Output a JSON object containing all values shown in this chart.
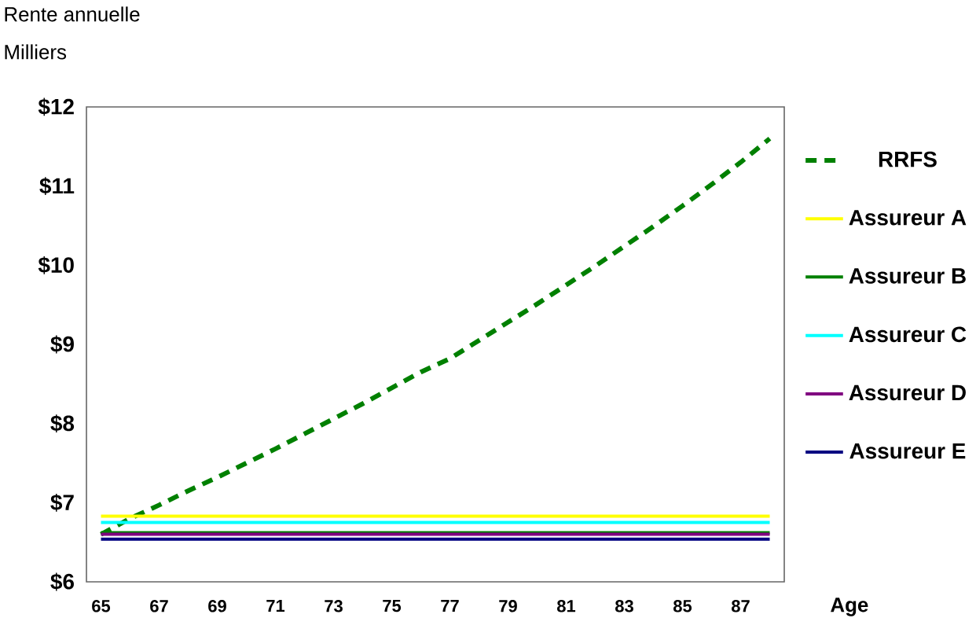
{
  "chart_data": {
    "type": "line",
    "ylabel": "Rente annuelle",
    "xlabel": "Age",
    "annotations": [
      "Milliers"
    ],
    "x": [
      65,
      66,
      67,
      68,
      69,
      70,
      71,
      72,
      73,
      74,
      75,
      76,
      77,
      78,
      79,
      80,
      81,
      82,
      83,
      84,
      85,
      86,
      87,
      88
    ],
    "xlim": [
      64.5,
      88.5
    ],
    "xticks": [
      65,
      67,
      69,
      71,
      73,
      75,
      77,
      79,
      81,
      83,
      85,
      87
    ],
    "ylim": [
      6,
      12
    ],
    "yticks": [
      {
        "value": 6,
        "label": "$6"
      },
      {
        "value": 7,
        "label": "$7"
      },
      {
        "value": 8,
        "label": "$8"
      },
      {
        "value": 9,
        "label": "$9"
      },
      {
        "value": 10,
        "label": "$10"
      },
      {
        "value": 11,
        "label": "$11"
      },
      {
        "value": 12,
        "label": "$12"
      }
    ],
    "grid": false,
    "legend": "right",
    "marker": "none",
    "series": [
      {
        "name": "RRFS",
        "color": "#008000",
        "line_style": "dashed",
        "values": [
          6.6,
          6.8,
          6.97,
          7.15,
          7.32,
          7.5,
          7.68,
          7.87,
          8.06,
          8.25,
          8.45,
          8.65,
          8.82,
          9.05,
          9.28,
          9.51,
          9.75,
          9.99,
          10.24,
          10.49,
          10.75,
          11.02,
          11.3,
          11.6
        ]
      },
      {
        "name": "Assureur A",
        "color": "#ffff00",
        "line_style": "solid",
        "values": [
          6.83,
          6.83,
          6.83,
          6.83,
          6.83,
          6.83,
          6.83,
          6.83,
          6.83,
          6.83,
          6.83,
          6.83,
          6.83,
          6.83,
          6.83,
          6.83,
          6.83,
          6.83,
          6.83,
          6.83,
          6.83,
          6.83,
          6.83,
          6.83
        ]
      },
      {
        "name": "Assureur B",
        "color": "#008000",
        "line_style": "solid",
        "values": [
          6.62,
          6.62,
          6.62,
          6.62,
          6.62,
          6.62,
          6.62,
          6.62,
          6.62,
          6.62,
          6.62,
          6.62,
          6.62,
          6.62,
          6.62,
          6.62,
          6.62,
          6.62,
          6.62,
          6.62,
          6.62,
          6.62,
          6.62,
          6.62
        ]
      },
      {
        "name": "Assureur C",
        "color": "#00ffff",
        "line_style": "solid",
        "values": [
          6.75,
          6.75,
          6.75,
          6.75,
          6.75,
          6.75,
          6.75,
          6.75,
          6.75,
          6.75,
          6.75,
          6.75,
          6.75,
          6.75,
          6.75,
          6.75,
          6.75,
          6.75,
          6.75,
          6.75,
          6.75,
          6.75,
          6.75,
          6.75
        ]
      },
      {
        "name": "Assureur D",
        "color": "#800080",
        "line_style": "solid",
        "values": [
          6.6,
          6.6,
          6.6,
          6.6,
          6.6,
          6.6,
          6.6,
          6.6,
          6.6,
          6.6,
          6.6,
          6.6,
          6.6,
          6.6,
          6.6,
          6.6,
          6.6,
          6.6,
          6.6,
          6.6,
          6.6,
          6.6,
          6.6,
          6.6
        ]
      },
      {
        "name": "Assureur E",
        "color": "#000080",
        "line_style": "solid",
        "values": [
          6.54,
          6.54,
          6.54,
          6.54,
          6.54,
          6.54,
          6.54,
          6.54,
          6.54,
          6.54,
          6.54,
          6.54,
          6.54,
          6.54,
          6.54,
          6.54,
          6.54,
          6.54,
          6.54,
          6.54,
          6.54,
          6.54,
          6.54,
          6.54
        ]
      }
    ]
  }
}
